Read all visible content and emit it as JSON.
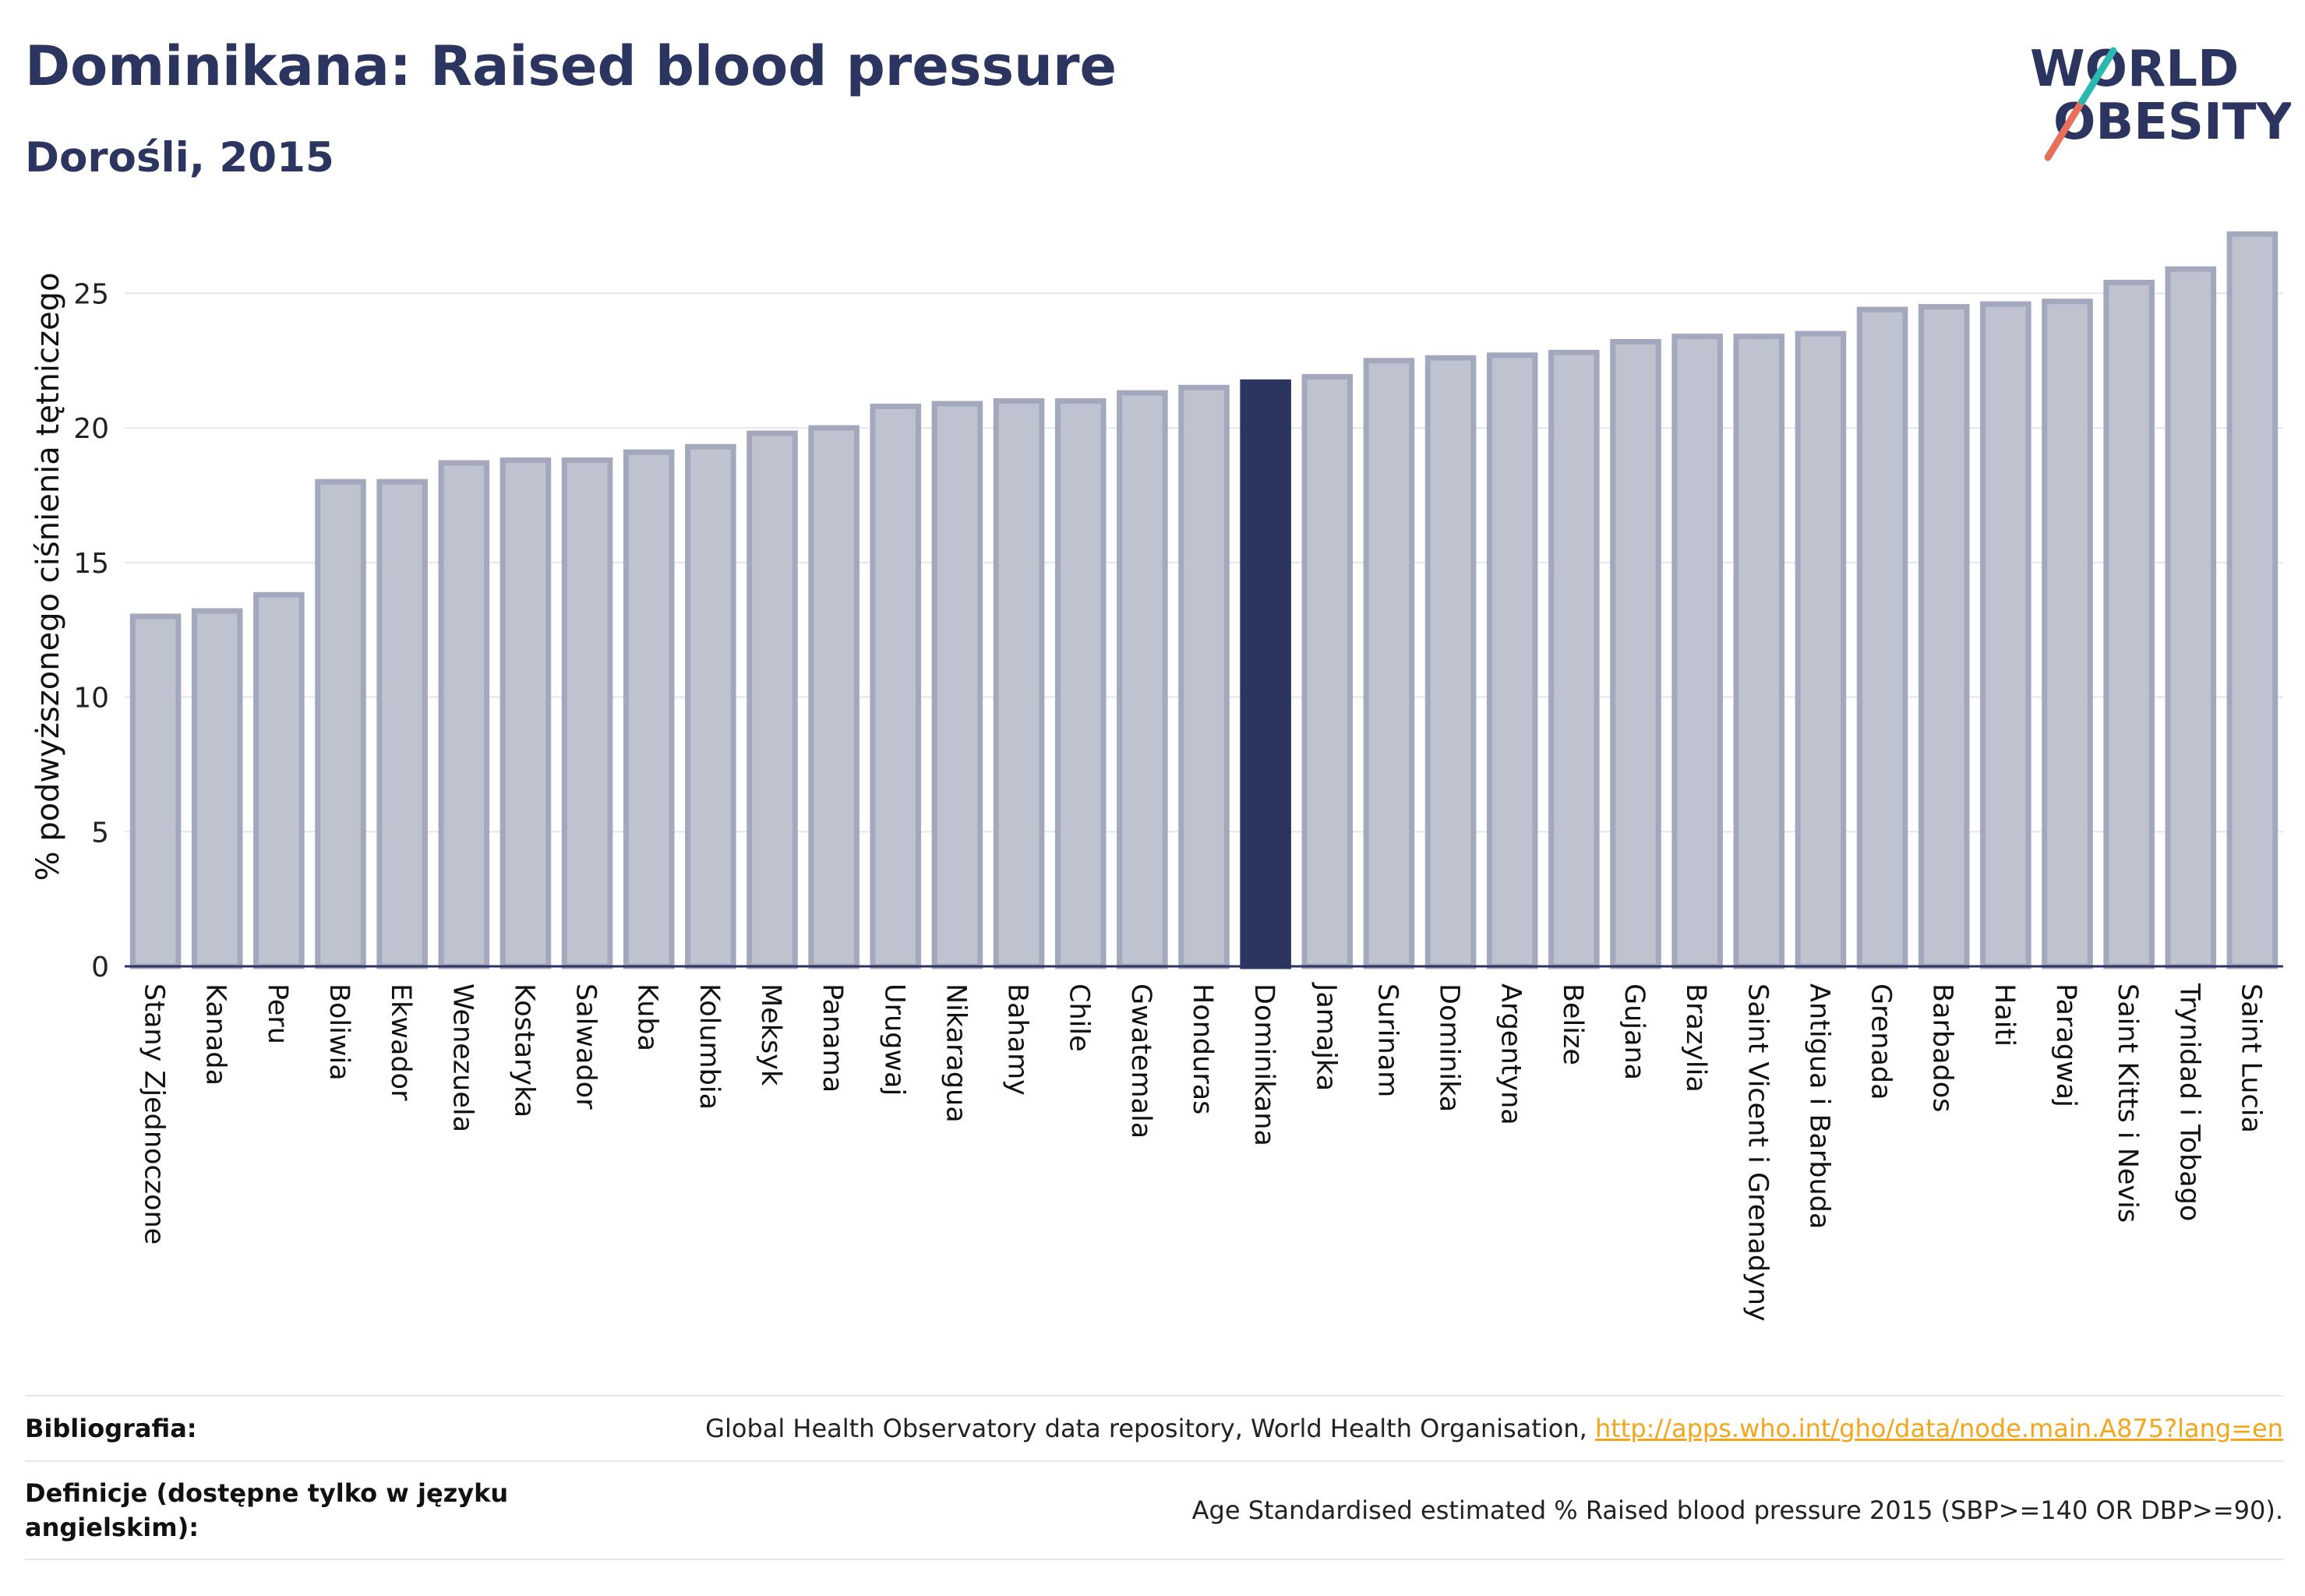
{
  "header": {
    "title": "Dominikana: Raised blood pressure",
    "subtitle": "Dorośli, 2015"
  },
  "logo": {
    "line1": "WORLD",
    "line2": "OBESITY"
  },
  "chart_data": {
    "type": "bar",
    "ylabel": "% podwyższonego ciśnienia tętniczego",
    "ylim": [
      0,
      27.5
    ],
    "yticks": [
      0,
      5,
      10,
      15,
      20,
      25
    ],
    "grid": true,
    "highlight": "Dominikana",
    "colors": {
      "bar": "#bfc3d0",
      "bar_edge": "#a3a8bd",
      "highlight": "#2b3560"
    },
    "categories": [
      "Stany Zjednoczone",
      "Kanada",
      "Peru",
      "Boliwia",
      "Ekwador",
      "Wenezuela",
      "Kostaryka",
      "Salwador",
      "Kuba",
      "Kolumbia",
      "Meksyk",
      "Panama",
      "Urugwaj",
      "Nikaragua",
      "Bahamy",
      "Chile",
      "Gwatemala",
      "Honduras",
      "Dominikana",
      "Jamajka",
      "Surinam",
      "Dominika",
      "Argentyna",
      "Belize",
      "Gujana",
      "Brazylia",
      "Saint Vicent i Grenadyny",
      "Antigua i Barbuda",
      "Grenada",
      "Barbados",
      "Haiti",
      "Paragwaj",
      "Saint Kitts i Nevis",
      "Trynidad i Tobago",
      "Saint Lucia"
    ],
    "values": [
      13.0,
      13.2,
      13.8,
      18.0,
      18.0,
      18.7,
      18.8,
      18.8,
      19.1,
      19.3,
      19.8,
      20.0,
      20.8,
      20.9,
      21.0,
      21.0,
      21.3,
      21.5,
      21.7,
      21.9,
      22.5,
      22.6,
      22.7,
      22.8,
      23.2,
      23.4,
      23.4,
      23.5,
      24.4,
      24.5,
      24.6,
      24.7,
      25.4,
      25.9,
      27.2
    ]
  },
  "footer": {
    "bibliography_label": "Bibliografia:",
    "bibliography_text": "Global Health Observatory data repository, World Health Organisation, ",
    "bibliography_link": "http://apps.who.int/gho/data/node.main.A875?lang=en",
    "definition_label": "Definicje (dostępne tylko w języku angielskim):",
    "definition_text": "Age Standardised estimated % Raised blood pressure 2015 (SBP>=140 OR DBP>=90)."
  }
}
